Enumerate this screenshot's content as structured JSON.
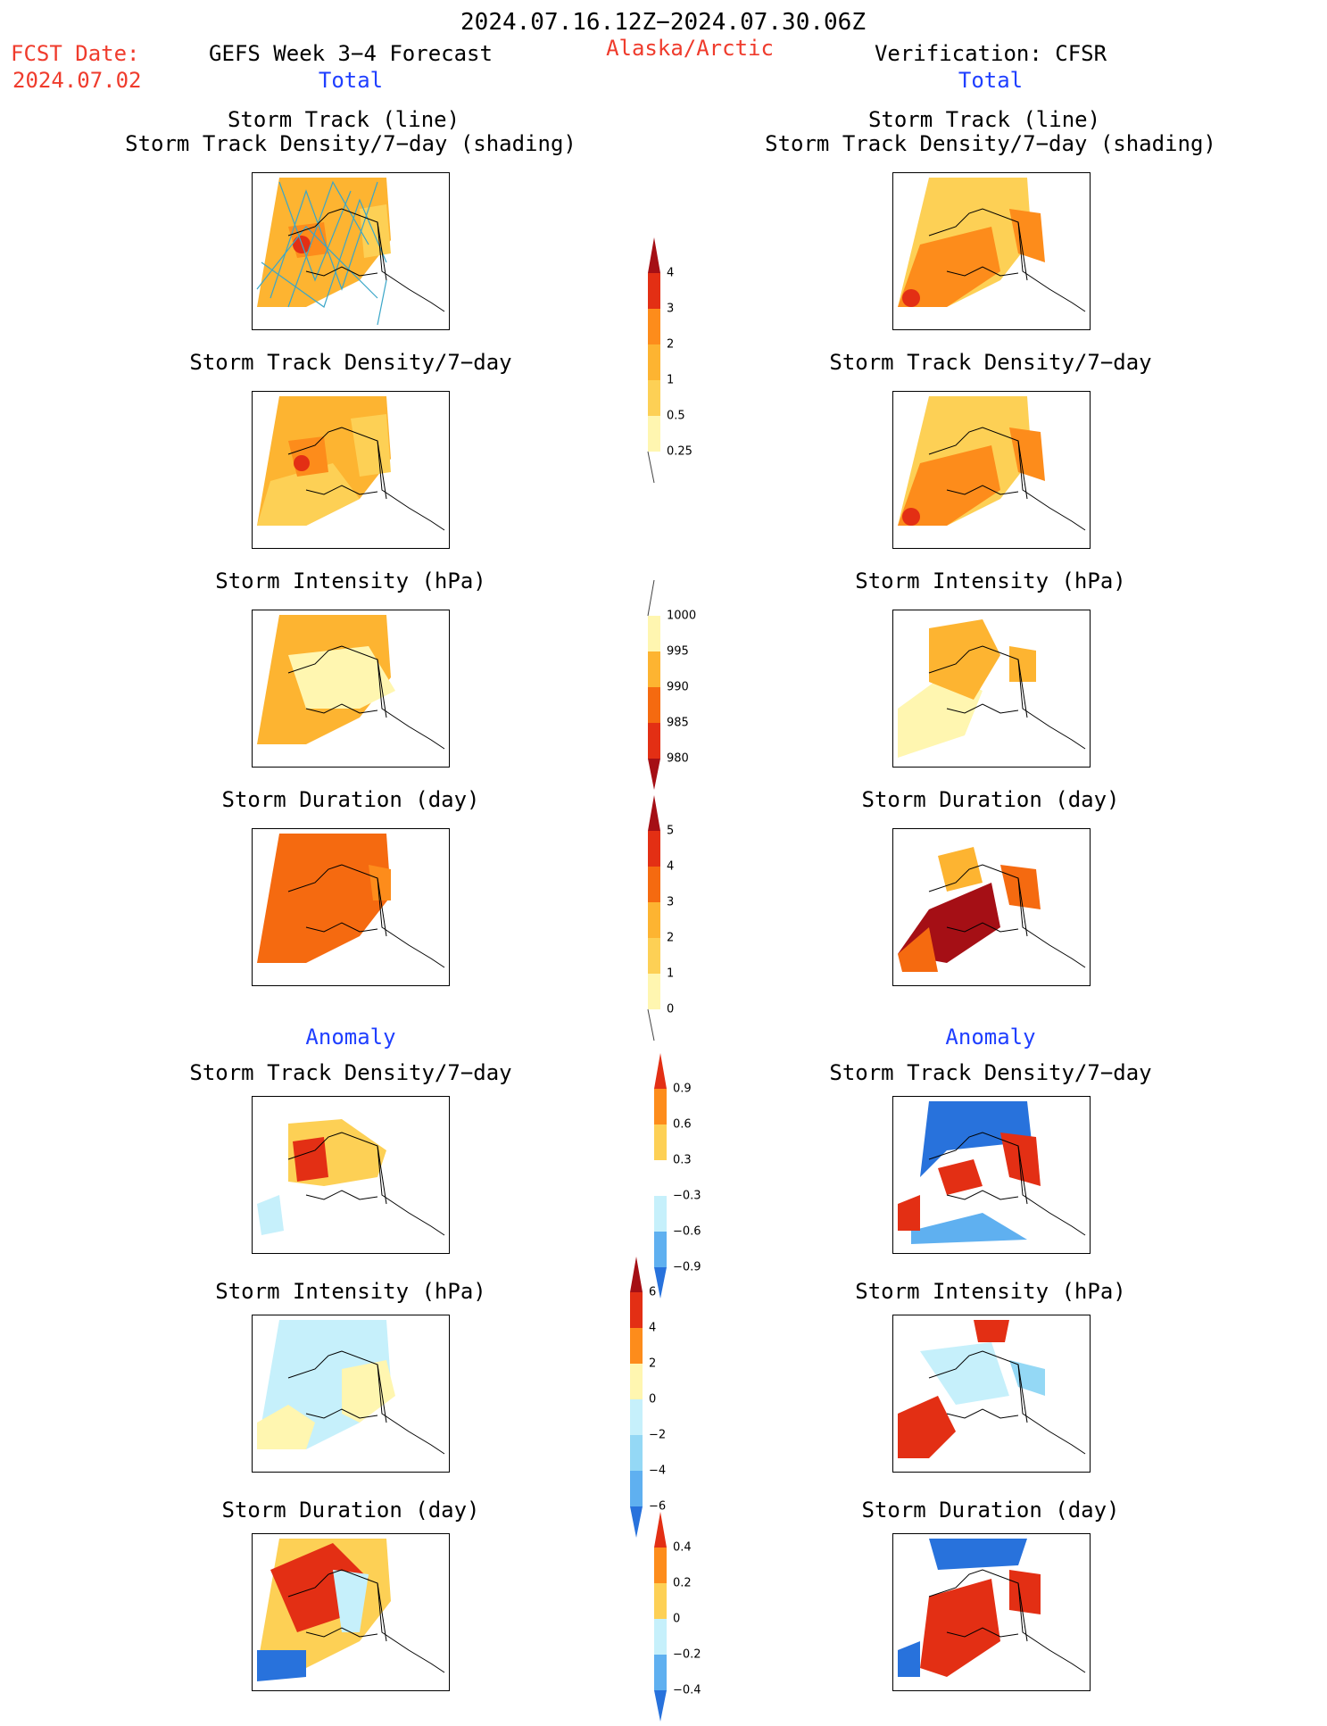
{
  "header": {
    "period": "2024.07.16.12Z−2024.07.30.06Z",
    "fcst_label": "FCST Date:",
    "fcst_date": "2024.07.02",
    "forecast_title": "GEFS Week 3−4 Forecast",
    "region": "Alaska/Arctic",
    "verification_title": "Verification: CFSR"
  },
  "sections": {
    "total": "Total",
    "anomaly": "Anomaly"
  },
  "titles": {
    "track_line": "Storm Track (line)",
    "track_density_shading": "Storm Track Density/7−day (shading)",
    "track_density": "Storm Track Density/7−day",
    "intensity": "Storm Intensity (hPa)",
    "duration": "Storm Duration (day)"
  },
  "colors": {
    "yellow_light": "#fff6b0",
    "yellow": "#fdd055",
    "orange_light": "#fdb431",
    "orange": "#fd8c1b",
    "orange_dark": "#f56a10",
    "red": "#e32f14",
    "dark_red": "#a50f15",
    "cyan_light": "#c6f0fb",
    "cyan": "#94d8f5",
    "blue_light": "#5fb0f0",
    "blue": "#2872dc",
    "track_line": "#3aa6c8"
  },
  "colorbars": {
    "track_density": [
      "4",
      "3",
      "2",
      "1",
      "0.5",
      "0.25"
    ],
    "intensity": [
      "1000",
      "995",
      "990",
      "985",
      "980"
    ],
    "duration": [
      "5",
      "4",
      "3",
      "2",
      "1",
      "0"
    ],
    "anom_density": [
      "0.9",
      "0.6",
      "0.3",
      "−0.3",
      "−0.6",
      "−0.9"
    ],
    "anom_intensity": [
      "6",
      "4",
      "2",
      "0",
      "−2",
      "−4",
      "−6"
    ],
    "anom_duration": [
      "0.4",
      "0.2",
      "0",
      "−0.2",
      "−0.4"
    ]
  }
}
